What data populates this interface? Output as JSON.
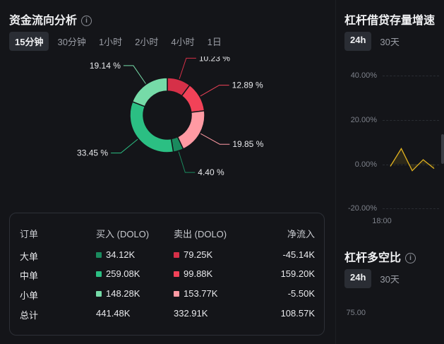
{
  "fund_flow": {
    "title": "资金流向分析",
    "tabs": [
      "15分钟",
      "30分钟",
      "1小时",
      "2小时",
      "4小时",
      "1日"
    ],
    "active_tab": 0,
    "slices": [
      {
        "label": "10.23 %",
        "value": 10.23,
        "color": "#d63048"
      },
      {
        "label": "12.89 %",
        "value": 12.89,
        "color": "#f24258"
      },
      {
        "label": "19.85 %",
        "value": 19.85,
        "color": "#ff9aa3"
      },
      {
        "label": "4.40 %",
        "value": 4.4,
        "color": "#1a8a5e"
      },
      {
        "label": "33.45 %",
        "value": 33.45,
        "color": "#2bbf83"
      },
      {
        "label": "19.14 %",
        "value": 19.14,
        "color": "#76dba8"
      }
    ],
    "table": {
      "headers": [
        "订单",
        "买入 (DOLO)",
        "卖出 (DOLO)",
        "净流入"
      ],
      "rows": [
        {
          "type": "大单",
          "buy": "34.12K",
          "buy_color": "#1a8a5e",
          "sell": "79.25K",
          "sell_color": "#d63048",
          "net": "-45.14K"
        },
        {
          "type": "中单",
          "buy": "259.08K",
          "buy_color": "#2bbf83",
          "sell": "99.88K",
          "sell_color": "#f24258",
          "net": "159.20K"
        },
        {
          "type": "小单",
          "buy": "148.28K",
          "buy_color": "#76dba8",
          "sell": "153.77K",
          "sell_color": "#ff9aa3",
          "net": "-5.50K"
        }
      ],
      "total": {
        "type": "总计",
        "buy": "441.48K",
        "sell": "332.91K",
        "net": "108.57K"
      }
    }
  },
  "leverage_growth": {
    "title": "杠杆借贷存量增速",
    "tabs": [
      "24h",
      "30天"
    ],
    "y_labels": [
      "40.00%",
      "20.00%",
      "0.00%",
      "-20.00%"
    ],
    "x_label": "18:00",
    "line_color": "#e0b11f",
    "chart_data": {
      "type": "line",
      "y": [
        -1,
        7,
        -3,
        2,
        -2
      ],
      "ylim": [
        -20,
        40
      ]
    }
  },
  "long_short": {
    "title": "杠杆多空比",
    "tabs": [
      "24h",
      "30天"
    ],
    "y_label": "75.00"
  }
}
